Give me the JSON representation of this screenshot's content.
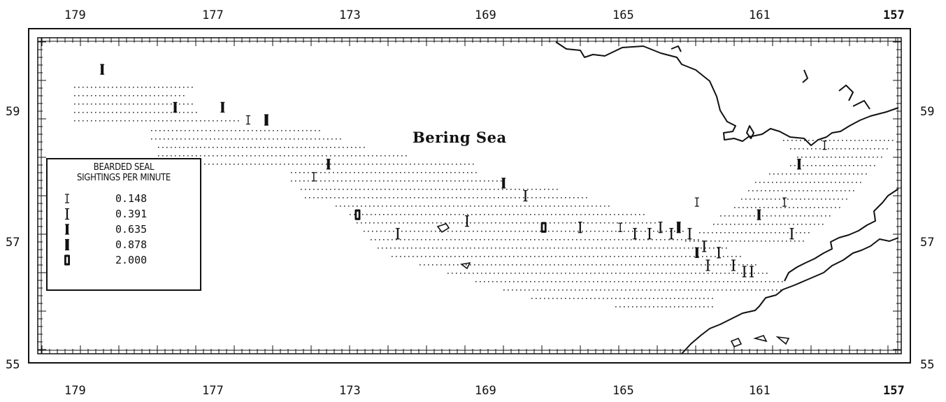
{
  "map": {
    "title": "Bering Sea",
    "longitude_labels": [
      "179",
      "177",
      "173",
      "169",
      "165",
      "161",
      "157"
    ],
    "latitude_labels": [
      "59",
      "57",
      "55"
    ],
    "bounds": {
      "lon_west": 179.9,
      "lon_east": 157.0,
      "lat_south": 54.9,
      "lat_north": 59.9
    }
  },
  "legend": {
    "title_line1": "BEARDED SEAL",
    "title_line2": "SIGHTINGS PER MINUTE",
    "entries": [
      {
        "label": "0.148",
        "rate": 0.148
      },
      {
        "label": "0.391",
        "rate": 0.391
      },
      {
        "label": "0.635",
        "rate": 0.635
      },
      {
        "label": "0.878",
        "rate": 0.878
      },
      {
        "label": "2.000",
        "rate": 2.0
      }
    ]
  },
  "sightings": [
    {
      "lon": 178.9,
      "lat": 59.4,
      "rate": 0.635
    },
    {
      "lon": 176.9,
      "lat": 58.8,
      "rate": 0.635
    },
    {
      "lon": 175.6,
      "lat": 58.8,
      "rate": 0.635
    },
    {
      "lon": 174.9,
      "lat": 58.6,
      "rate": 0.148
    },
    {
      "lon": 174.4,
      "lat": 58.6,
      "rate": 0.878
    },
    {
      "lon": 172.7,
      "lat": 57.9,
      "rate": 0.635
    },
    {
      "lon": 173.1,
      "lat": 57.7,
      "rate": 0.148
    },
    {
      "lon": 171.9,
      "lat": 57.1,
      "rate": 2.0
    },
    {
      "lon": 170.8,
      "lat": 56.8,
      "rate": 0.391
    },
    {
      "lon": 168.9,
      "lat": 57.0,
      "rate": 0.391
    },
    {
      "lon": 167.9,
      "lat": 57.6,
      "rate": 0.635
    },
    {
      "lon": 167.3,
      "lat": 57.4,
      "rate": 0.391
    },
    {
      "lon": 166.8,
      "lat": 56.9,
      "rate": 2.0
    },
    {
      "lon": 165.8,
      "lat": 56.9,
      "rate": 0.391
    },
    {
      "lon": 164.7,
      "lat": 56.9,
      "rate": 0.148
    },
    {
      "lon": 164.3,
      "lat": 56.8,
      "rate": 0.391
    },
    {
      "lon": 163.9,
      "lat": 56.8,
      "rate": 0.391
    },
    {
      "lon": 163.6,
      "lat": 56.9,
      "rate": 0.391
    },
    {
      "lon": 163.3,
      "lat": 56.8,
      "rate": 0.391
    },
    {
      "lon": 163.1,
      "lat": 56.9,
      "rate": 0.878
    },
    {
      "lon": 162.8,
      "lat": 56.8,
      "rate": 0.391
    },
    {
      "lon": 162.6,
      "lat": 56.5,
      "rate": 0.635
    },
    {
      "lon": 162.4,
      "lat": 56.6,
      "rate": 0.391
    },
    {
      "lon": 162.3,
      "lat": 56.3,
      "rate": 0.391
    },
    {
      "lon": 162.0,
      "lat": 56.5,
      "rate": 0.391
    },
    {
      "lon": 161.6,
      "lat": 56.3,
      "rate": 0.391
    },
    {
      "lon": 161.3,
      "lat": 56.2,
      "rate": 0.391
    },
    {
      "lon": 161.1,
      "lat": 56.2,
      "rate": 0.391
    },
    {
      "lon": 162.6,
      "lat": 57.3,
      "rate": 0.148
    },
    {
      "lon": 160.9,
      "lat": 57.1,
      "rate": 0.635
    },
    {
      "lon": 160.2,
      "lat": 57.3,
      "rate": 0.148
    },
    {
      "lon": 160.0,
      "lat": 56.8,
      "rate": 0.391
    },
    {
      "lon": 159.8,
      "lat": 57.9,
      "rate": 0.635
    },
    {
      "lon": 159.1,
      "lat": 58.2,
      "rate": 0.148
    }
  ]
}
